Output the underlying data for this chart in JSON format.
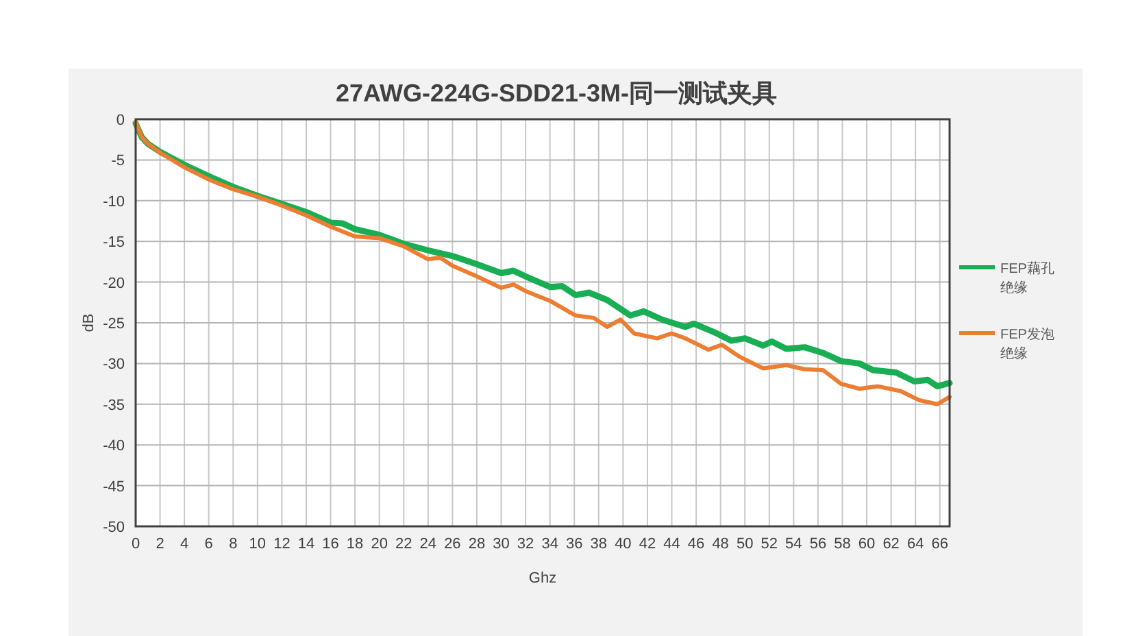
{
  "chart_data": {
    "type": "line",
    "title": "27AWG-224G-SDD21-3M-同一测试夹具",
    "xlabel": "Ghz",
    "ylabel": "dB",
    "xlim": [
      0,
      66.8
    ],
    "xticks": [
      0,
      2,
      4,
      6,
      8,
      10,
      12,
      14,
      16,
      18,
      20,
      22,
      24,
      26,
      28,
      30,
      32,
      34,
      36,
      38,
      40,
      42,
      44,
      46,
      48,
      50,
      52,
      54,
      56,
      58,
      60,
      62,
      64,
      66
    ],
    "ylim": [
      -50,
      0
    ],
    "yticks": [
      -50,
      -45,
      -40,
      -35,
      -30,
      -25,
      -20,
      -15,
      -10,
      -5,
      0
    ],
    "grid": true,
    "legend": "right",
    "marker": "none",
    "line_style": "solid",
    "series": [
      {
        "name": "FEP藕孔绝缘",
        "color": "#1aae54",
        "x": [
          0,
          0.5,
          1,
          2,
          4,
          6,
          8,
          10,
          12,
          14,
          16,
          17,
          18,
          20,
          22,
          24,
          26,
          28,
          30,
          31,
          32,
          34,
          35,
          36.1,
          37.2,
          38.7,
          40.6,
          41.7,
          43.2,
          45.1,
          45.8,
          47.4,
          48.9,
          50,
          51.5,
          52.2,
          53.4,
          54.9,
          56.4,
          57.9,
          59.4,
          60.5,
          62.4,
          63.9,
          65,
          65.8,
          66.8
        ],
        "values": [
          -0.5,
          -2.2,
          -3,
          -4,
          -5.6,
          -7,
          -8.3,
          -9.4,
          -10.4,
          -11.4,
          -12.7,
          -12.8,
          -13.5,
          -14.2,
          -15.3,
          -16.1,
          -16.8,
          -17.8,
          -18.9,
          -18.6,
          -19.3,
          -20.6,
          -20.5,
          -21.6,
          -21.3,
          -22.2,
          -24.1,
          -23.6,
          -24.6,
          -25.5,
          -25.1,
          -26.1,
          -27.2,
          -26.9,
          -27.8,
          -27.3,
          -28.2,
          -28,
          -28.7,
          -29.7,
          -30,
          -30.8,
          -31.1,
          -32.2,
          -32,
          -32.8,
          -32.4
        ]
      },
      {
        "name": "FEP发泡绝缘",
        "color": "#ed7d31",
        "x": [
          0,
          0.5,
          1,
          2,
          4,
          6,
          8,
          10,
          12,
          14,
          16,
          18,
          20,
          22,
          24,
          25,
          26,
          28,
          30,
          31,
          32,
          34,
          36.1,
          37.6,
          38.7,
          39.8,
          40.9,
          42.8,
          44,
          45.1,
          47,
          48.1,
          49.6,
          51.5,
          53.4,
          54.9,
          56.4,
          57.9,
          59.4,
          60.9,
          62.8,
          64.3,
          65.8,
          66.8
        ],
        "values": [
          -0.3,
          -2.2,
          -3,
          -4.1,
          -5.9,
          -7.4,
          -8.6,
          -9.5,
          -10.6,
          -11.8,
          -13.2,
          -14.4,
          -14.6,
          -15.6,
          -17.2,
          -17,
          -18,
          -19.3,
          -20.7,
          -20.3,
          -21.1,
          -22.3,
          -24.1,
          -24.4,
          -25.5,
          -24.6,
          -26.3,
          -26.9,
          -26.3,
          -26.9,
          -28.3,
          -27.7,
          -29.2,
          -30.6,
          -30.2,
          -30.7,
          -30.8,
          -32.5,
          -33.1,
          -32.8,
          -33.4,
          -34.5,
          -35,
          -34.1
        ]
      }
    ]
  }
}
